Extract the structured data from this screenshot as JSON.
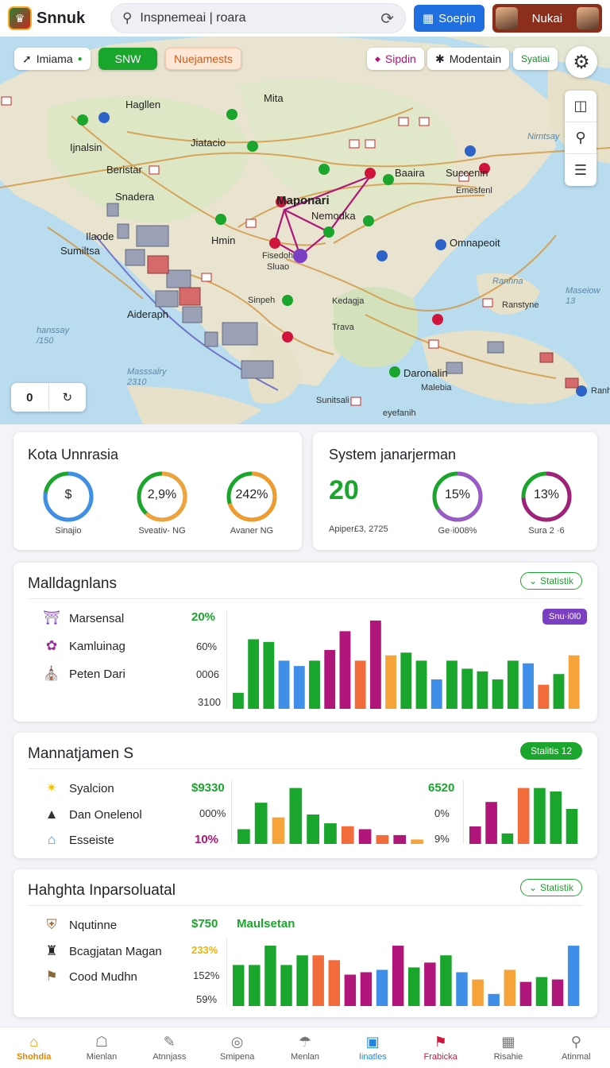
{
  "header": {
    "app_name": "Snnuk",
    "search_value": "Inspnemeai | roara",
    "primary_button": "Soepin",
    "user_name": "Nukai"
  },
  "map": {
    "chips": [
      "Imiama",
      "SNW",
      "Nuejamests",
      "Sipdin",
      "Modentain",
      "Syatiai"
    ],
    "zoom_value": "0",
    "labels": {
      "mapanari": "Maponari",
      "nemedka": "Nemodka",
      "omnapeoit": "Omnapeoit",
      "daronalin": "Daronalin",
      "mita": "Mita",
      "hagllen": "Hagllen",
      "ijnalsin": "Ijnalsin",
      "jiatacio": "Jiatacio",
      "beristar": "Beristar",
      "snadera": "Snadera",
      "ilaode": "Ilaode",
      "sumiltsa": "Sumiltsa",
      "aideraph": "Aideraph",
      "hmin": "Hmin",
      "sinpeh": "Sinpeh",
      "kedagja": "Kedagja",
      "trava": "Trava",
      "malebia": "Malebia",
      "suntsali": "Sunitsali",
      "eyefanih": "eyefanih",
      "baaira": "Baaira",
      "succenin": "Succenin",
      "emesfenl": "Emesfenl",
      "nirntsay": "Nirntsay",
      "hanssay": "hanssay\n/150",
      "masssalry": "Masssalry\n2310",
      "maseiow": "Maseiow\n13",
      "fisedoh": "Fisedoh",
      "sluao": "Sluao",
      "ranhna": "Ranhna",
      "ranstyne": "Ranstyne",
      "ranhelta": "Ranhelta"
    }
  },
  "overview": {
    "left": {
      "title": "Kota Unnrasia",
      "rings": [
        {
          "value": "$",
          "caption": "Sinajio",
          "pct": 0.78,
          "color": "#3f8ee8"
        },
        {
          "value": "2,9%",
          "caption": "Sveativ- NG",
          "pct": 0.62,
          "color": "#f2a23a"
        },
        {
          "value": "242%",
          "caption": "Avaner NG",
          "pct": 0.7,
          "color": "#f39a2d"
        }
      ]
    },
    "right": {
      "title": "System janarjerman",
      "big_value": "20",
      "big_caption": "Apiper£3, 2725",
      "rings": [
        {
          "value": "15%",
          "caption": "Ge·i008%",
          "pct": 0.66,
          "color": "#9b59c9"
        },
        {
          "value": "13%",
          "caption": "Sura 2 ·6",
          "pct": 0.74,
          "color": "#a3207a"
        }
      ]
    }
  },
  "section1": {
    "title": "Malldagnlans",
    "pill": "Statistik",
    "tag": "Snu·i0l0",
    "rows": [
      {
        "label": "Marsensal",
        "icon": "gate-icon"
      },
      {
        "label": "Kamluinag",
        "icon": "emblem-icon"
      },
      {
        "label": "Peten Dari",
        "icon": "temple-icon"
      }
    ],
    "metrics": [
      "20%",
      "60%",
      "0006",
      "3100"
    ],
    "chart_data": {
      "type": "bar",
      "values": [
        12,
        52,
        50,
        36,
        32,
        36,
        44,
        58,
        36,
        66,
        40,
        42,
        36,
        22,
        36,
        30,
        28,
        22,
        36,
        34,
        18,
        26,
        40
      ],
      "colors": [
        "#1aa52c",
        "#1aa52c",
        "#1aa52c",
        "#3f8ee8",
        "#3f8ee8",
        "#1aa52c",
        "#b0157a",
        "#b0157a",
        "#f26b3a",
        "#b0157a",
        "#f6a33a",
        "#1aa52c",
        "#1aa52c",
        "#3f8ee8",
        "#1aa52c",
        "#1aa52c",
        "#1aa52c",
        "#1aa52c",
        "#1aa52c",
        "#3f8ee8",
        "#f26b3a",
        "#1aa52c",
        "#f6a33a"
      ]
    }
  },
  "section2": {
    "title": "Mannatjamen S",
    "pill": "Stalitis 12",
    "rows": [
      {
        "label": "Syalcion",
        "icon": "star-icon"
      },
      {
        "label": "Dan Onelenol",
        "icon": "hat-icon"
      },
      {
        "label": "Esseiste",
        "icon": "house-icon"
      }
    ],
    "metrics_left": [
      "$9330",
      "000%",
      "10%"
    ],
    "metrics_right": [
      "6520",
      "0%",
      "9%"
    ],
    "chart_left": {
      "type": "bar",
      "values": [
        10,
        28,
        18,
        38,
        20,
        14,
        12,
        10,
        6,
        6,
        3
      ],
      "colors": [
        "#1aa52c",
        "#1aa52c",
        "#f6a33a",
        "#1aa52c",
        "#1aa52c",
        "#1aa52c",
        "#f26b3a",
        "#b0157a",
        "#f26b3a",
        "#b0157a",
        "#f6a33a"
      ]
    },
    "chart_right": {
      "type": "bar",
      "values": [
        10,
        24,
        6,
        32,
        32,
        30,
        20
      ],
      "colors": [
        "#b0157a",
        "#b0157a",
        "#1aa52c",
        "#f26b3a",
        "#1aa52c",
        "#1aa52c",
        "#1aa52c"
      ]
    }
  },
  "section3": {
    "title": "Hahghta Inparsoluatal",
    "pill": "Statistik",
    "subtitle": "Maulsetan",
    "rows": [
      {
        "label": "Nqutinne",
        "icon": "shield-icon"
      },
      {
        "label": "Bcagjatan Magan",
        "icon": "helmet-icon"
      },
      {
        "label": "Cood Mudhn",
        "icon": "pennant-icon"
      }
    ],
    "metrics": [
      "$750",
      "233%",
      "152%",
      "59%"
    ],
    "chart_data": {
      "type": "bar",
      "values": [
        34,
        34,
        50,
        34,
        42,
        42,
        38,
        26,
        28,
        30,
        50,
        32,
        36,
        42,
        28,
        22,
        10,
        30,
        20,
        24,
        22,
        50
      ],
      "colors": [
        "#1aa52c",
        "#1aa52c",
        "#1aa52c",
        "#1aa52c",
        "#1aa52c",
        "#f26b3a",
        "#f26b3a",
        "#b0157a",
        "#b0157a",
        "#3f8ee8",
        "#b0157a",
        "#1aa52c",
        "#b0157a",
        "#1aa52c",
        "#3f8ee8",
        "#f6a33a",
        "#3f8ee8",
        "#f6a33a",
        "#b0157a",
        "#1aa52c",
        "#b0157a",
        "#3f8ee8"
      ]
    }
  },
  "bottom_nav": [
    {
      "label": "Shohdia",
      "icon": "home-icon",
      "state": "active-orange"
    },
    {
      "label": "Mienlan",
      "icon": "building-icon",
      "state": ""
    },
    {
      "label": "Atnnjass",
      "icon": "edit-icon",
      "state": ""
    },
    {
      "label": "Smipena",
      "icon": "globe-icon",
      "state": ""
    },
    {
      "label": "Menlan",
      "icon": "beach-icon",
      "state": ""
    },
    {
      "label": "Iinatles",
      "icon": "grid-icon",
      "state": "active-blue"
    },
    {
      "label": "Frabicka",
      "icon": "flag-icon",
      "state": "active-red"
    },
    {
      "label": "Risahie",
      "icon": "table-icon",
      "state": ""
    },
    {
      "label": "Atinmal",
      "icon": "search-icon",
      "state": ""
    }
  ]
}
